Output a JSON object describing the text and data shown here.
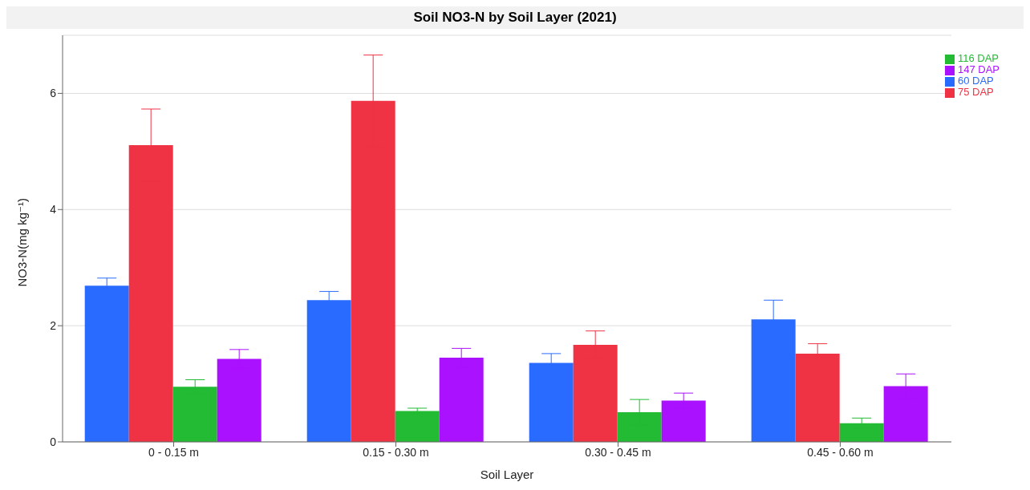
{
  "chart_data": {
    "type": "bar",
    "title": "Soil NO3-N by Soil Layer (2021)",
    "xlabel": "Soil Layer",
    "ylabel": "NO3-N(mg kg⁻¹)",
    "categories": [
      "0 - 0.15 m",
      "0.15 - 0.30 m",
      "0.30 - 0.45 m",
      "0.45 - 0.60 m"
    ],
    "series": [
      {
        "name": "60 DAP",
        "color": "#2a6bff",
        "values": [
          2.69,
          2.44,
          1.36,
          2.11
        ],
        "errors": [
          0.13,
          0.15,
          0.16,
          0.33
        ]
      },
      {
        "name": "75 DAP",
        "color": "#ef3344",
        "values": [
          5.11,
          5.87,
          1.67,
          1.52
        ],
        "errors": [
          0.62,
          0.79,
          0.24,
          0.17
        ]
      },
      {
        "name": "116 DAP",
        "color": "#22bb33",
        "values": [
          0.95,
          0.53,
          0.51,
          0.32
        ],
        "errors": [
          0.12,
          0.05,
          0.22,
          0.09
        ]
      },
      {
        "name": "147 DAP",
        "color": "#aa11ff",
        "values": [
          1.43,
          1.45,
          0.71,
          0.96
        ],
        "errors": [
          0.16,
          0.16,
          0.13,
          0.21
        ]
      }
    ],
    "ylim": [
      0,
      7
    ],
    "yticks": [
      0,
      2,
      4,
      6
    ],
    "grid": "y",
    "legend": "top right"
  }
}
